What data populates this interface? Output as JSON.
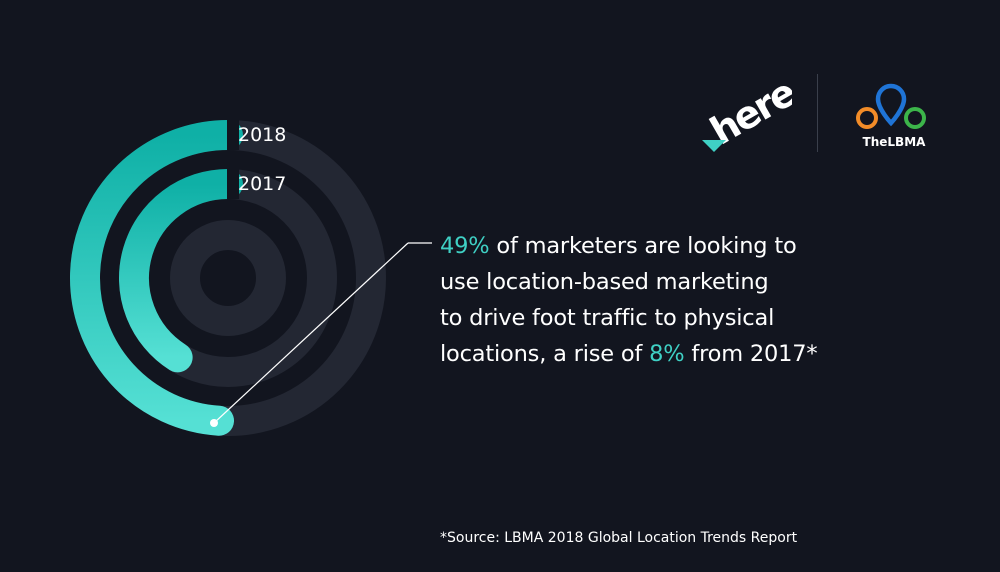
{
  "chart_data": {
    "type": "radial-bar",
    "series": [
      {
        "name": "2018",
        "value": 49
      },
      {
        "name": "2017",
        "value": 41
      }
    ],
    "unit": "%",
    "max": 100,
    "colors": {
      "arc_start": "#0fb0a6",
      "arc_end": "#55e0d4",
      "track": "#232733",
      "background": "#12151f"
    }
  },
  "headline": {
    "line1_accent": "49%",
    "line1_rest": " of marketers are looking to",
    "line2": "use location-based marketing",
    "line3": "to drive foot traffic to physical",
    "line4_pre": "locations, a rise of ",
    "line4_accent": "8%",
    "line4_post": " from 2017*"
  },
  "source": "*Source: LBMA 2018 Global Location Trends Report",
  "logos": {
    "here": "here",
    "lbma": "TheLBMA"
  },
  "colors": {
    "accent": "#3fd0c4"
  }
}
